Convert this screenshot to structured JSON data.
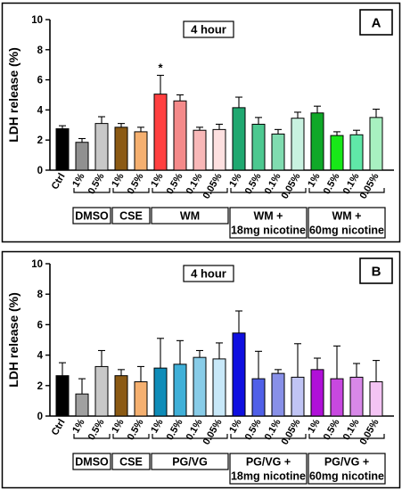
{
  "chart_data": [
    {
      "type": "bar",
      "panel_label": "A",
      "annotation": "4 hour",
      "ylabel": "LDH release (%)",
      "ylim": [
        0,
        10
      ],
      "yticks": [
        0,
        2,
        4,
        6,
        8,
        10
      ],
      "categories": [
        "Ctrl",
        "1%",
        "0.5%",
        "1%",
        "0.5%",
        "1%",
        "0.5%",
        "0.1%",
        "0.05%",
        "1%",
        "0.5%",
        "0.1%",
        "0.05%",
        "1%",
        "0.5%",
        "0.1%",
        "0.05%"
      ],
      "values": [
        2.75,
        1.85,
        3.1,
        2.85,
        2.55,
        5.05,
        4.6,
        2.65,
        2.7,
        4.15,
        3.05,
        2.4,
        3.45,
        3.8,
        2.3,
        2.35,
        3.5
      ],
      "errors": [
        0.2,
        0.25,
        0.45,
        0.25,
        0.3,
        1.25,
        0.4,
        0.2,
        0.35,
        0.7,
        0.45,
        0.3,
        0.4,
        0.45,
        0.25,
        0.3,
        0.55
      ],
      "colors": [
        "#000000",
        "#909090",
        "#c8c8c8",
        "#8b5a14",
        "#f5b070",
        "#ff4040",
        "#f48a8a",
        "#f8b8b8",
        "#fde0e0",
        "#1fa870",
        "#4cc890",
        "#80dcb0",
        "#c8f2e0",
        "#10a828",
        "#18e818",
        "#60e8a8",
        "#a8f0c0"
      ],
      "significance": [
        {
          "index": 5,
          "mark": "*"
        }
      ],
      "groups": [
        {
          "label": "DMSO",
          "start": 1,
          "end": 2
        },
        {
          "label": "CSE",
          "start": 3,
          "end": 4
        },
        {
          "label": "WM",
          "start": 5,
          "end": 8
        },
        {
          "label": "WM +\n18mg nicotine",
          "start": 9,
          "end": 12
        },
        {
          "label": "WM +\n60mg nicotine",
          "start": 13,
          "end": 16
        }
      ]
    },
    {
      "type": "bar",
      "panel_label": "B",
      "annotation": "4 hour",
      "ylabel": "LDH release (%)",
      "ylim": [
        0,
        10
      ],
      "yticks": [
        0,
        2,
        4,
        6,
        8,
        10
      ],
      "categories": [
        "Ctrl",
        "1%",
        "0.5%",
        "1%",
        "0.5%",
        "1%",
        "0.5%",
        "0.1%",
        "0.05%",
        "1%",
        "0.5%",
        "0.1%",
        "0.05%",
        "1%",
        "0.5%",
        "0.1%",
        "0.05%"
      ],
      "values": [
        2.65,
        1.45,
        3.25,
        2.65,
        2.25,
        3.15,
        3.4,
        3.85,
        3.75,
        5.45,
        2.45,
        2.8,
        2.55,
        3.05,
        2.45,
        2.55,
        2.25
      ],
      "errors": [
        0.85,
        1.0,
        1.05,
        0.4,
        1.0,
        1.95,
        1.55,
        0.45,
        1.05,
        1.45,
        1.8,
        0.25,
        2.2,
        0.75,
        2.15,
        0.9,
        1.4
      ],
      "colors": [
        "#000000",
        "#a0a0a0",
        "#c8c8c8",
        "#8b5a14",
        "#f5b070",
        "#0e8cb8",
        "#40b0d8",
        "#88cce8",
        "#c8e8f8",
        "#1010e0",
        "#5060e8",
        "#8890e8",
        "#c0c4f4",
        "#b010d8",
        "#c848e0",
        "#d888e8",
        "#f4c4f4"
      ],
      "significance": [],
      "groups": [
        {
          "label": "DMSO",
          "start": 1,
          "end": 2
        },
        {
          "label": "CSE",
          "start": 3,
          "end": 4
        },
        {
          "label": "PG/VG",
          "start": 5,
          "end": 8
        },
        {
          "label": "PG/VG +\n18mg nicotine",
          "start": 9,
          "end": 12
        },
        {
          "label": "PG/VG +\n60mg nicotine",
          "start": 13,
          "end": 16
        }
      ]
    }
  ]
}
